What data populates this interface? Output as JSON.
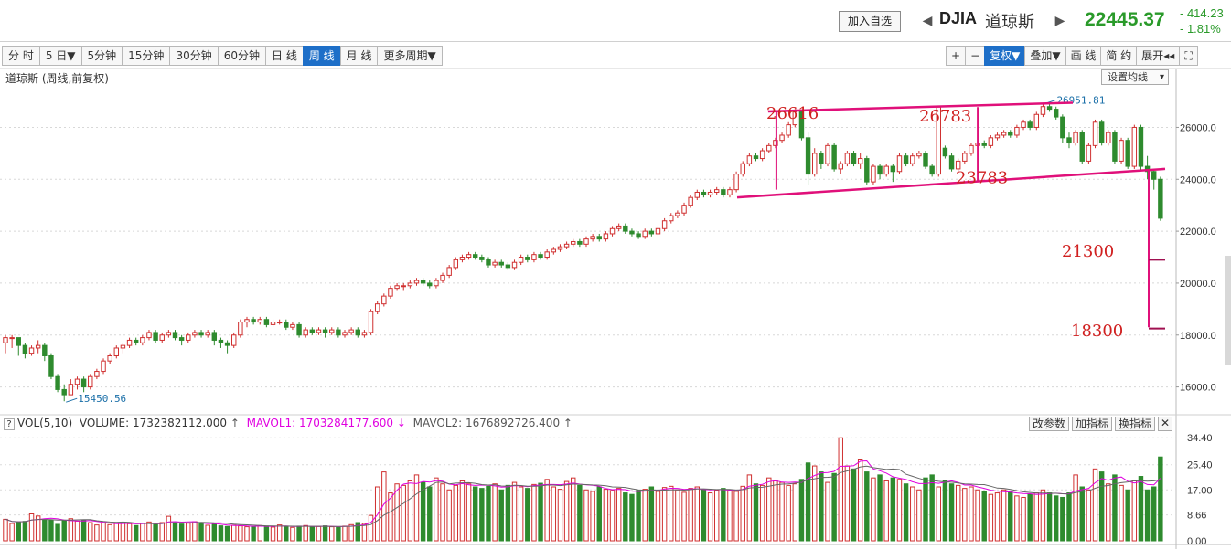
{
  "header": {
    "add_watchlist": "加入自选",
    "symbol": "DJIA",
    "symbol_name": "道琼斯",
    "price": "22445.37",
    "change": "- 414.23",
    "change_pct": "- 1.81%"
  },
  "period_tabs": [
    {
      "label": "分 时",
      "active": false
    },
    {
      "label": "5 日▼",
      "active": false
    },
    {
      "label": "5分钟",
      "active": false
    },
    {
      "label": "15分钟",
      "active": false
    },
    {
      "label": "30分钟",
      "active": false
    },
    {
      "label": "60分钟",
      "active": false
    },
    {
      "label": "日 线",
      "active": false
    },
    {
      "label": "周 线",
      "active": true
    },
    {
      "label": "月 线",
      "active": false
    },
    {
      "label": "更多周期▼",
      "active": false
    }
  ],
  "right_tools": [
    {
      "label": "+",
      "active": false
    },
    {
      "label": "−",
      "active": false
    },
    {
      "label": "复权▼",
      "active": true
    },
    {
      "label": "叠加▼",
      "active": false
    },
    {
      "label": "画 线",
      "active": false
    },
    {
      "label": "简 约",
      "active": false
    },
    {
      "label": "展开◂◂",
      "active": false
    },
    {
      "label": "⛶",
      "active": false
    }
  ],
  "chart_title": "道琼斯 (周线,前复权)",
  "set_ma_label": "设置均线",
  "volume_panel": {
    "name": "VOL(5,10)",
    "volume": "VOLUME: 1732382112.000",
    "mavol1": "MAVOL1: 1703284177.600",
    "mavol2": "MAVOL2: 1676892726.400",
    "buttons": [
      "改参数",
      "加指标",
      "换指标"
    ]
  },
  "colors": {
    "up": "#d03030",
    "down": "#2e8b2e",
    "annot": "#e0107a",
    "label": "#d02020",
    "ma1": "#e000e0",
    "ma2": "#666666"
  },
  "chart_data": {
    "type": "candlestick",
    "price_axis": {
      "min": 15000,
      "max": 27600,
      "ticks": [
        16000,
        18000,
        20000,
        22000,
        24000,
        26000
      ]
    },
    "volume_axis": {
      "min": 0,
      "max": 36,
      "ticks": [
        "0.00",
        "8.66",
        "17.00",
        "25.40",
        "34.40"
      ]
    },
    "markers": [
      {
        "label": "15450.56",
        "value": 15450.56
      },
      {
        "label": "26951.81",
        "value": 26951.81
      }
    ],
    "annotations": [
      {
        "text": "26616",
        "value": 26616
      },
      {
        "text": "26783",
        "value": 26783
      },
      {
        "text": "23783",
        "value": 23783
      },
      {
        "text": "21300",
        "value": 21300
      },
      {
        "text": "18300",
        "value": 18300
      }
    ],
    "candles": [
      [
        17700,
        17900,
        17300,
        18000
      ],
      [
        17900,
        17900,
        17500,
        18000
      ],
      [
        17900,
        17600,
        17200,
        17900
      ],
      [
        17600,
        17300,
        17100,
        17700
      ],
      [
        17300,
        17500,
        17200,
        17600
      ],
      [
        17500,
        17600,
        17300,
        17800
      ],
      [
        17600,
        17200,
        17000,
        17700
      ],
      [
        17200,
        16400,
        16300,
        17300
      ],
      [
        16400,
        15900,
        15800,
        16500
      ],
      [
        15900,
        15700,
        15450,
        16100
      ],
      [
        15700,
        16100,
        15700,
        16300
      ],
      [
        16100,
        16300,
        15900,
        16400
      ],
      [
        16300,
        16000,
        15800,
        16400
      ],
      [
        16000,
        16400,
        15900,
        16500
      ],
      [
        16400,
        16600,
        16300,
        16700
      ],
      [
        16600,
        17000,
        16500,
        17100
      ],
      [
        17000,
        17200,
        16900,
        17300
      ],
      [
        17200,
        17500,
        17100,
        17600
      ],
      [
        17500,
        17600,
        17300,
        17700
      ],
      [
        17600,
        17800,
        17500,
        17900
      ],
      [
        17800,
        17700,
        17600,
        17900
      ],
      [
        17700,
        17900,
        17600,
        18000
      ],
      [
        17900,
        18100,
        17800,
        18200
      ],
      [
        18100,
        17800,
        17700,
        18200
      ],
      [
        17800,
        18000,
        17700,
        18100
      ],
      [
        18000,
        18100,
        17900,
        18200
      ],
      [
        18100,
        17900,
        17800,
        18200
      ],
      [
        17900,
        17800,
        17600,
        18000
      ],
      [
        17800,
        18000,
        17700,
        18100
      ],
      [
        18000,
        18100,
        17900,
        18200
      ],
      [
        18100,
        18000,
        17900,
        18200
      ],
      [
        18000,
        18100,
        17900,
        18200
      ],
      [
        18100,
        17800,
        17600,
        18200
      ],
      [
        17800,
        17700,
        17500,
        17900
      ],
      [
        17700,
        17600,
        17300,
        17800
      ],
      [
        17600,
        18000,
        17500,
        18100
      ],
      [
        18000,
        18500,
        17900,
        18600
      ],
      [
        18500,
        18600,
        18300,
        18700
      ],
      [
        18600,
        18500,
        18400,
        18700
      ],
      [
        18500,
        18600,
        18400,
        18700
      ],
      [
        18600,
        18400,
        18300,
        18700
      ],
      [
        18400,
        18500,
        18300,
        18600
      ],
      [
        18500,
        18500,
        18400,
        18600
      ],
      [
        18500,
        18300,
        18200,
        18600
      ],
      [
        18300,
        18400,
        18200,
        18500
      ],
      [
        18400,
        18000,
        17900,
        18500
      ],
      [
        18000,
        18200,
        17900,
        18300
      ],
      [
        18200,
        18100,
        18000,
        18300
      ],
      [
        18100,
        18200,
        18000,
        18300
      ],
      [
        18200,
        18100,
        17900,
        18300
      ],
      [
        18100,
        18200,
        18000,
        18300
      ],
      [
        18200,
        18000,
        17900,
        18300
      ],
      [
        18000,
        18100,
        17900,
        18200
      ],
      [
        18100,
        18200,
        18000,
        18300
      ],
      [
        18200,
        18000,
        17900,
        18300
      ],
      [
        18000,
        18100,
        17900,
        18200
      ],
      [
        18100,
        18900,
        18000,
        19000
      ],
      [
        18900,
        19200,
        18800,
        19300
      ],
      [
        19200,
        19500,
        19100,
        19600
      ],
      [
        19500,
        19800,
        19400,
        19900
      ],
      [
        19800,
        19900,
        19700,
        20000
      ],
      [
        19900,
        19900,
        19700,
        20000
      ],
      [
        19900,
        20000,
        19800,
        20100
      ],
      [
        20000,
        20100,
        19900,
        20200
      ],
      [
        20100,
        20000,
        19900,
        20200
      ],
      [
        20000,
        19900,
        19800,
        20100
      ],
      [
        19900,
        20100,
        19800,
        20200
      ],
      [
        20100,
        20300,
        20000,
        20400
      ],
      [
        20300,
        20600,
        20200,
        20700
      ],
      [
        20600,
        20900,
        20500,
        21000
      ],
      [
        20900,
        21000,
        20800,
        21100
      ],
      [
        21000,
        21100,
        20900,
        21200
      ],
      [
        21100,
        21000,
        20900,
        21200
      ],
      [
        21000,
        20900,
        20800,
        21100
      ],
      [
        20900,
        20700,
        20600,
        21000
      ],
      [
        20700,
        20800,
        20600,
        20900
      ],
      [
        20800,
        20700,
        20600,
        20900
      ],
      [
        20700,
        20600,
        20500,
        20800
      ],
      [
        20600,
        20800,
        20500,
        20900
      ],
      [
        20800,
        21000,
        20700,
        21100
      ],
      [
        21000,
        20900,
        20800,
        21100
      ],
      [
        20900,
        21100,
        20800,
        21200
      ],
      [
        21100,
        21000,
        20900,
        21200
      ],
      [
        21000,
        21200,
        20900,
        21300
      ],
      [
        21200,
        21300,
        21100,
        21400
      ],
      [
        21300,
        21400,
        21200,
        21500
      ],
      [
        21400,
        21500,
        21300,
        21600
      ],
      [
        21500,
        21600,
        21400,
        21700
      ],
      [
        21600,
        21500,
        21400,
        21700
      ],
      [
        21500,
        21700,
        21400,
        21800
      ],
      [
        21700,
        21800,
        21600,
        21900
      ],
      [
        21800,
        21700,
        21600,
        21900
      ],
      [
        21700,
        21900,
        21600,
        22000
      ],
      [
        21900,
        22100,
        21800,
        22200
      ],
      [
        22100,
        22200,
        22000,
        22300
      ],
      [
        22200,
        22000,
        21900,
        22300
      ],
      [
        22000,
        21900,
        21800,
        22100
      ],
      [
        21900,
        21800,
        21700,
        22000
      ],
      [
        21800,
        22000,
        21700,
        22100
      ],
      [
        22000,
        21900,
        21800,
        22100
      ],
      [
        21900,
        22100,
        21800,
        22200
      ],
      [
        22100,
        22400,
        22000,
        22500
      ],
      [
        22400,
        22600,
        22300,
        22700
      ],
      [
        22600,
        22700,
        22500,
        22800
      ],
      [
        22700,
        23000,
        22600,
        23100
      ],
      [
        23000,
        23300,
        22900,
        23400
      ],
      [
        23300,
        23500,
        23200,
        23600
      ],
      [
        23500,
        23400,
        23300,
        23600
      ],
      [
        23400,
        23500,
        23300,
        23600
      ],
      [
        23500,
        23600,
        23400,
        23700
      ],
      [
        23600,
        23400,
        23300,
        23700
      ],
      [
        23400,
        23600,
        23300,
        23700
      ],
      [
        23600,
        24200,
        23500,
        24300
      ],
      [
        24200,
        24600,
        24100,
        24700
      ],
      [
        24600,
        24900,
        24500,
        25000
      ],
      [
        24900,
        24800,
        24700,
        25000
      ],
      [
        24800,
        25100,
        24700,
        25200
      ],
      [
        25100,
        25300,
        25000,
        25400
      ],
      [
        25300,
        25500,
        25200,
        25600
      ],
      [
        25500,
        25700,
        25400,
        25800
      ],
      [
        25700,
        26100,
        25600,
        26200
      ],
      [
        26100,
        26600,
        26000,
        26700
      ],
      [
        26600,
        25600,
        25500,
        26616
      ],
      [
        25600,
        24200,
        23800,
        25800
      ],
      [
        24200,
        25000,
        24100,
        25200
      ],
      [
        25000,
        24600,
        24400,
        25100
      ],
      [
        24600,
        25300,
        24500,
        25400
      ],
      [
        25300,
        24400,
        24300,
        25400
      ],
      [
        24400,
        24600,
        24200,
        24700
      ],
      [
        24600,
        25000,
        24500,
        25100
      ],
      [
        25000,
        24600,
        24500,
        25100
      ],
      [
        24600,
        24800,
        24400,
        25000
      ],
      [
        24800,
        23900,
        23800,
        24900
      ],
      [
        23900,
        24500,
        23800,
        24600
      ],
      [
        24500,
        24200,
        24000,
        24600
      ],
      [
        24200,
        24500,
        24100,
        24600
      ],
      [
        24500,
        24300,
        23900,
        24600
      ],
      [
        24300,
        24900,
        24200,
        25000
      ],
      [
        24900,
        24600,
        24500,
        25000
      ],
      [
        24600,
        24900,
        24500,
        25000
      ],
      [
        24900,
        25000,
        24800,
        25100
      ],
      [
        25000,
        24500,
        24400,
        25100
      ],
      [
        24500,
        24200,
        24100,
        24600
      ],
      [
        24200,
        26783,
        24100,
        26783
      ],
      [
        25200,
        24900,
        24800,
        25300
      ],
      [
        24900,
        24400,
        24300,
        25000
      ],
      [
        24400,
        24700,
        24300,
        24800
      ],
      [
        24700,
        25000,
        24600,
        25100
      ],
      [
        25000,
        25300,
        24900,
        25400
      ],
      [
        25300,
        25400,
        25200,
        25500
      ],
      [
        25400,
        25300,
        25200,
        25500
      ],
      [
        25300,
        25600,
        25200,
        25700
      ],
      [
        25600,
        25700,
        25500,
        25800
      ],
      [
        25700,
        25800,
        25600,
        25900
      ],
      [
        25800,
        25700,
        25600,
        25900
      ],
      [
        25700,
        26000,
        25600,
        26100
      ],
      [
        26000,
        26200,
        25900,
        26300
      ],
      [
        26200,
        26000,
        25900,
        26300
      ],
      [
        26000,
        26500,
        25900,
        26600
      ],
      [
        26500,
        26800,
        26400,
        26951
      ],
      [
        26800,
        26700,
        26600,
        26900
      ],
      [
        26700,
        26400,
        26300,
        26800
      ],
      [
        26400,
        25600,
        25400,
        26500
      ],
      [
        25600,
        25400,
        25200,
        25800
      ],
      [
        25400,
        25800,
        25300,
        25900
      ],
      [
        25800,
        24700,
        24600,
        25900
      ],
      [
        24700,
        25300,
        24600,
        25400
      ],
      [
        25300,
        26200,
        25200,
        26300
      ],
      [
        26200,
        25400,
        25300,
        26300
      ],
      [
        25400,
        25800,
        25300,
        25900
      ],
      [
        25800,
        24700,
        24600,
        25900
      ],
      [
        24700,
        25500,
        24600,
        25600
      ],
      [
        25500,
        24500,
        24400,
        25600
      ],
      [
        24500,
        26000,
        24400,
        26100
      ],
      [
        26000,
        24500,
        24300,
        26100
      ],
      [
        24500,
        24300,
        24000,
        24900
      ],
      [
        24300,
        24000,
        23600,
        24400
      ],
      [
        24000,
        22500,
        22400,
        24100
      ]
    ],
    "volumes": [
      7.2,
      5.8,
      6.1,
      6.5,
      9.0,
      8.3,
      7.1,
      6.9,
      5.5,
      6.8,
      7.4,
      6.6,
      7.0,
      6.1,
      5.3,
      6.0,
      5.4,
      5.9,
      6.2,
      5.7,
      5.1,
      5.8,
      6.3,
      5.4,
      6.1,
      8.2,
      6.0,
      5.6,
      5.9,
      6.4,
      5.8,
      5.2,
      5.5,
      5.0,
      4.8,
      5.2,
      5.0,
      4.7,
      4.6,
      5.1,
      4.9,
      4.6,
      5.3,
      4.8,
      4.5,
      4.9,
      5.1,
      4.6,
      4.8,
      5.0,
      4.7,
      4.5,
      4.9,
      5.4,
      6.1,
      5.8,
      8.5,
      18.0,
      23.0,
      16.0,
      19.0,
      18.5,
      20.0,
      22.0,
      19.5,
      18.0,
      21.0,
      19.0,
      17.0,
      18.5,
      20.0,
      19.0,
      18.0,
      17.5,
      18.2,
      19.0,
      17.0,
      18.5,
      19.5,
      18.0,
      17.5,
      18.8,
      19.2,
      20.5,
      18.0,
      17.2,
      19.8,
      21.0,
      18.5,
      17.0,
      16.5,
      18.0,
      17.2,
      16.8,
      17.5,
      16.0,
      15.5,
      16.8,
      17.2,
      18.0,
      16.5,
      17.8,
      18.2,
      17.0,
      16.2,
      17.5,
      18.0,
      17.2,
      16.0,
      16.8,
      17.5,
      17.0,
      16.5,
      18.2,
      22.0,
      19.0,
      18.5,
      21.0,
      20.0,
      19.5,
      18.5,
      19.0,
      20.5,
      26.0,
      25.0,
      23.0,
      19.5,
      22.5,
      34.4,
      25.0,
      24.0,
      27.0,
      23.0,
      21.0,
      22.0,
      20.0,
      21.0,
      20.5,
      19.0,
      18.0,
      17.0,
      21.0,
      22.0,
      18.0,
      20.0,
      19.0,
      18.5,
      17.5,
      18.0,
      17.0,
      16.5,
      15.5,
      16.0,
      17.0,
      16.5,
      15.0,
      14.5,
      15.5,
      16.0,
      17.0,
      16.0,
      15.0,
      14.5,
      16.0,
      22.0,
      18.0,
      17.0,
      24.0,
      23.0,
      19.0,
      22.0,
      18.5,
      17.0,
      20.0,
      21.5,
      17.0,
      18.0,
      28.0
    ],
    "ma_volume1": [],
    "ma_volume2": []
  }
}
